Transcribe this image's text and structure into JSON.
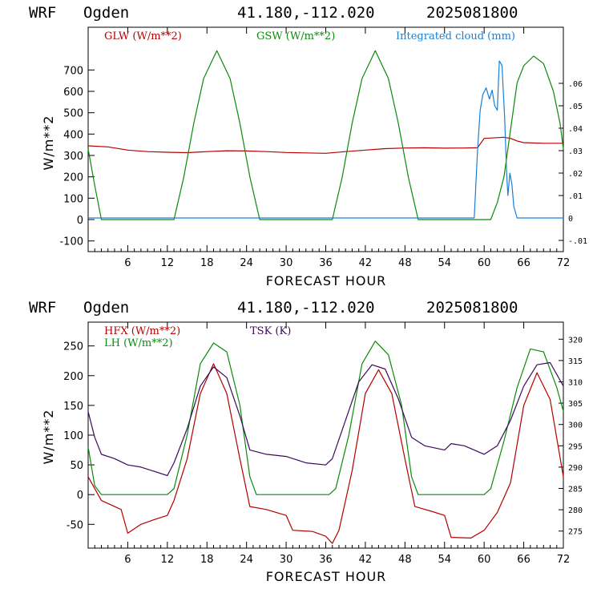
{
  "colors": {
    "red": "#b40000",
    "green": "#0a8a0a",
    "blue": "#1a7fd4",
    "purple": "#3c0a5a",
    "black": "#000000"
  },
  "chart_data": [
    {
      "type": "line",
      "header": {
        "model": "WRF",
        "site": "Ogden",
        "coords": "41.180,-112.020",
        "init": "2025081800"
      },
      "xlabel": "FORECAST HOUR",
      "ylabel": "W/m**2",
      "xlim": [
        0,
        72
      ],
      "ylim": [
        -150,
        900
      ],
      "xticks": [
        6,
        12,
        18,
        24,
        30,
        36,
        42,
        48,
        54,
        60,
        66,
        72
      ],
      "yticks": [
        -100,
        0,
        100,
        200,
        300,
        400,
        500,
        600,
        700
      ],
      "right_axis": {
        "lim": [
          -0.015,
          0.085
        ],
        "ticks": [
          -0.01,
          0,
          0.01,
          0.02,
          0.03,
          0.04,
          0.05,
          0.06
        ],
        "labels": [
          "-.01",
          "0",
          ".01",
          ".02",
          ".03",
          ".04",
          ".05",
          ".06"
        ],
        "series": "cloud"
      },
      "legend": [
        {
          "key": "glw",
          "label": "GLW (W/m**2)",
          "color": "#b40000"
        },
        {
          "key": "gsw",
          "label": "GSW (W/m**2)",
          "color": "#0a8a0a"
        },
        {
          "key": "cloud",
          "label": "Integrated cloud (mm)",
          "color": "#1a7fd4"
        }
      ],
      "series": [
        {
          "key": "glw",
          "axis": "left",
          "color": "#b40000",
          "points": [
            [
              0,
              345
            ],
            [
              3,
              340
            ],
            [
              6,
              325
            ],
            [
              9,
              318
            ],
            [
              12,
              315
            ],
            [
              15,
              313
            ],
            [
              18,
              318
            ],
            [
              21,
              322
            ],
            [
              24,
              321
            ],
            [
              27,
              318
            ],
            [
              30,
              314
            ],
            [
              33,
              312
            ],
            [
              36,
              310
            ],
            [
              39,
              318
            ],
            [
              42,
              325
            ],
            [
              45,
              332
            ],
            [
              48,
              335
            ],
            [
              51,
              336
            ],
            [
              54,
              334
            ],
            [
              57,
              335
            ],
            [
              59,
              336
            ],
            [
              60,
              380
            ],
            [
              63,
              385
            ],
            [
              64,
              380
            ],
            [
              65,
              368
            ],
            [
              66,
              360
            ],
            [
              69,
              357
            ],
            [
              72,
              357
            ]
          ]
        },
        {
          "key": "gsw",
          "axis": "left",
          "color": "#0a8a0a",
          "points": [
            [
              0,
              330
            ],
            [
              1,
              160
            ],
            [
              2,
              0
            ],
            [
              13,
              0
            ],
            [
              14.5,
              200
            ],
            [
              16,
              450
            ],
            [
              17.5,
              660
            ],
            [
              19.5,
              790
            ],
            [
              21.5,
              660
            ],
            [
              23,
              450
            ],
            [
              24.5,
              200
            ],
            [
              26,
              0
            ],
            [
              37,
              0
            ],
            [
              38.5,
              200
            ],
            [
              40,
              450
            ],
            [
              41.5,
              660
            ],
            [
              43.5,
              790
            ],
            [
              45.5,
              660
            ],
            [
              47,
              450
            ],
            [
              48.5,
              200
            ],
            [
              50,
              0
            ],
            [
              61,
              0
            ],
            [
              62,
              80
            ],
            [
              63,
              200
            ],
            [
              64,
              420
            ],
            [
              65,
              640
            ],
            [
              66,
              720
            ],
            [
              67.5,
              765
            ],
            [
              69,
              730
            ],
            [
              70.5,
              600
            ],
            [
              71.5,
              450
            ],
            [
              72,
              330
            ]
          ]
        },
        {
          "key": "cloud",
          "axis": "right",
          "color": "#1a7fd4",
          "points": [
            [
              0,
              0
            ],
            [
              58.5,
              0
            ],
            [
              59,
              0.03
            ],
            [
              59.4,
              0.048
            ],
            [
              59.8,
              0.055
            ],
            [
              60.3,
              0.058
            ],
            [
              60.8,
              0.053
            ],
            [
              61.2,
              0.057
            ],
            [
              61.6,
              0.05
            ],
            [
              62,
              0.048
            ],
            [
              62.3,
              0.07
            ],
            [
              62.7,
              0.068
            ],
            [
              63.1,
              0.045
            ],
            [
              63.4,
              0.02
            ],
            [
              63.6,
              0.01
            ],
            [
              63.9,
              0.02
            ],
            [
              64.2,
              0.015
            ],
            [
              64.5,
              0.005
            ],
            [
              65,
              0
            ],
            [
              72,
              0
            ]
          ]
        }
      ]
    },
    {
      "type": "line",
      "header": {
        "model": "WRF",
        "site": "Ogden",
        "coords": "41.180,-112.020",
        "init": "2025081800"
      },
      "xlabel": "FORECAST HOUR",
      "ylabel": "W/m**2",
      "xlim": [
        0,
        72
      ],
      "ylim": [
        -90,
        290
      ],
      "xticks": [
        6,
        12,
        18,
        24,
        30,
        36,
        42,
        48,
        54,
        60,
        66,
        72
      ],
      "yticks": [
        -50,
        0,
        50,
        100,
        150,
        200,
        250
      ],
      "right_axis": {
        "lim": [
          271,
          324
        ],
        "ticks": [
          275,
          280,
          285,
          290,
          295,
          300,
          305,
          310,
          315,
          320
        ],
        "labels": [
          "275",
          "280",
          "285",
          "290",
          "295",
          "300",
          "305",
          "310",
          "315",
          "320"
        ],
        "series": "tsk"
      },
      "legend": [
        {
          "key": "hfx",
          "label": "HFX (W/m**2)",
          "color": "#b40000"
        },
        {
          "key": "lh",
          "label": "LH  (W/m**2)",
          "color": "#0a8a0a"
        },
        {
          "key": "tsk",
          "label": "TSK (K)",
          "color": "#3c0a5a"
        }
      ],
      "series": [
        {
          "key": "hfx",
          "axis": "left",
          "color": "#b40000",
          "points": [
            [
              0,
              30
            ],
            [
              2,
              -10
            ],
            [
              5,
              -25
            ],
            [
              6,
              -65
            ],
            [
              8,
              -50
            ],
            [
              10,
              -42
            ],
            [
              12,
              -35
            ],
            [
              13,
              -10
            ],
            [
              15,
              60
            ],
            [
              17,
              170
            ],
            [
              19,
              220
            ],
            [
              21,
              170
            ],
            [
              23,
              60
            ],
            [
              24.5,
              -20
            ],
            [
              27,
              -25
            ],
            [
              30,
              -35
            ],
            [
              31,
              -60
            ],
            [
              34,
              -62
            ],
            [
              36,
              -70
            ],
            [
              37,
              -82
            ],
            [
              38,
              -60
            ],
            [
              40,
              40
            ],
            [
              42,
              170
            ],
            [
              44,
              210
            ],
            [
              46,
              170
            ],
            [
              48,
              60
            ],
            [
              49.5,
              -20
            ],
            [
              52,
              -28
            ],
            [
              54,
              -35
            ],
            [
              55,
              -72
            ],
            [
              58,
              -73
            ],
            [
              60,
              -60
            ],
            [
              62,
              -30
            ],
            [
              64,
              20
            ],
            [
              66,
              150
            ],
            [
              68,
              205
            ],
            [
              70,
              160
            ],
            [
              72,
              30
            ]
          ]
        },
        {
          "key": "lh",
          "axis": "left",
          "color": "#0a8a0a",
          "points": [
            [
              0,
              80
            ],
            [
              1,
              15
            ],
            [
              2,
              0
            ],
            [
              12,
              0
            ],
            [
              13,
              10
            ],
            [
              15,
              100
            ],
            [
              17,
              220
            ],
            [
              19,
              255
            ],
            [
              21,
              240
            ],
            [
              23,
              150
            ],
            [
              24.5,
              30
            ],
            [
              25.5,
              0
            ],
            [
              36.5,
              0
            ],
            [
              37.5,
              10
            ],
            [
              39.5,
              100
            ],
            [
              41.5,
              220
            ],
            [
              43.5,
              258
            ],
            [
              45.5,
              235
            ],
            [
              47.5,
              150
            ],
            [
              49,
              30
            ],
            [
              50,
              0
            ],
            [
              60,
              0
            ],
            [
              61,
              10
            ],
            [
              63,
              90
            ],
            [
              65,
              180
            ],
            [
              67,
              245
            ],
            [
              69,
              240
            ],
            [
              71,
              180
            ],
            [
              72,
              140
            ]
          ]
        },
        {
          "key": "tsk",
          "axis": "right",
          "color": "#3c0a5a",
          "points": [
            [
              0,
              303
            ],
            [
              1,
              297
            ],
            [
              2,
              293
            ],
            [
              4,
              292
            ],
            [
              6,
              290.5
            ],
            [
              8,
              290
            ],
            [
              10,
              289
            ],
            [
              12,
              288
            ],
            [
              13,
              291
            ],
            [
              15,
              299
            ],
            [
              17,
              309
            ],
            [
              19,
              313.5
            ],
            [
              21,
              311
            ],
            [
              23,
              302
            ],
            [
              24.5,
              294
            ],
            [
              27,
              293
            ],
            [
              30,
              292.5
            ],
            [
              33,
              291
            ],
            [
              36,
              290.5
            ],
            [
              37,
              292
            ],
            [
              39,
              301
            ],
            [
              41,
              310
            ],
            [
              43,
              314
            ],
            [
              45,
              313
            ],
            [
              47,
              306
            ],
            [
              49,
              297
            ],
            [
              51,
              295
            ],
            [
              54,
              294
            ],
            [
              55,
              295.5
            ],
            [
              57,
              295
            ],
            [
              60,
              293
            ],
            [
              62,
              295
            ],
            [
              64,
              301
            ],
            [
              66,
              309
            ],
            [
              68,
              314
            ],
            [
              70,
              314.5
            ],
            [
              72,
              309
            ]
          ]
        }
      ]
    }
  ]
}
